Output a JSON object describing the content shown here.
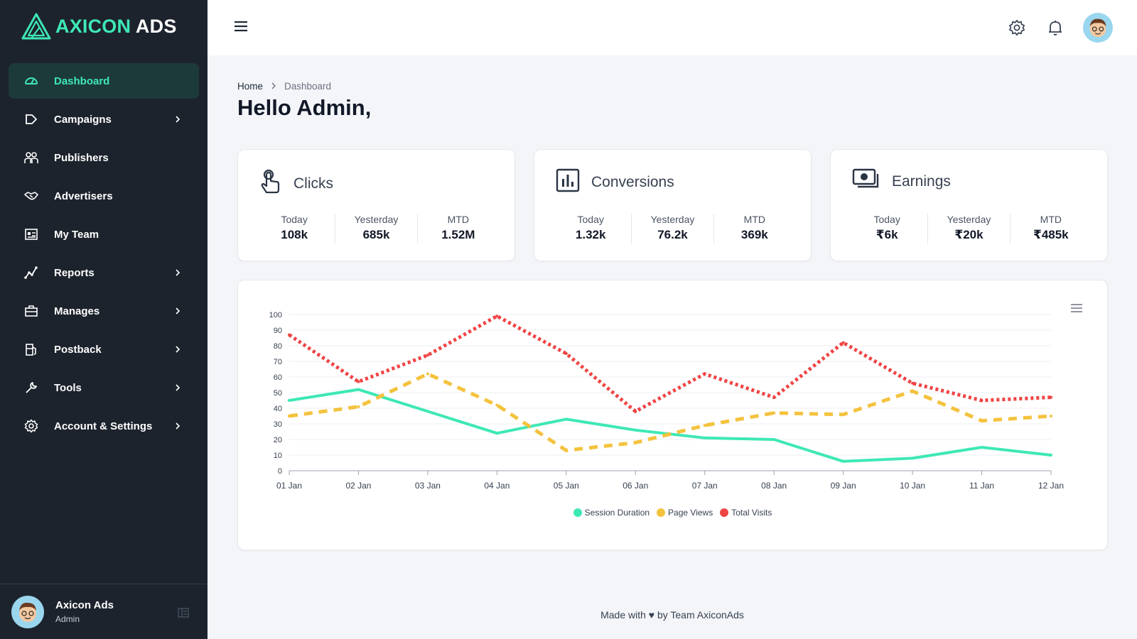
{
  "brand": {
    "part1": "AXICON",
    "part2": "ADS",
    "accent": "#3ee8b5",
    "sidebar_bg": "#1d232d"
  },
  "sidebar": {
    "items": [
      {
        "label": "Dashboard",
        "icon": "gauge-icon",
        "active": true,
        "chevron": false
      },
      {
        "label": "Campaigns",
        "icon": "megaphone-icon",
        "chevron": true
      },
      {
        "label": "Publishers",
        "icon": "users-icon",
        "chevron": false
      },
      {
        "label": "Advertisers",
        "icon": "handshake-icon",
        "chevron": false
      },
      {
        "label": "My Team",
        "icon": "id-card-icon",
        "chevron": false
      },
      {
        "label": "Reports",
        "icon": "chart-line-icon",
        "chevron": true
      },
      {
        "label": "Manages",
        "icon": "briefcase-icon",
        "chevron": true
      },
      {
        "label": "Postback",
        "icon": "fuel-icon",
        "chevron": true
      },
      {
        "label": "Tools",
        "icon": "wrench-icon",
        "chevron": true
      },
      {
        "label": "Account & Settings",
        "icon": "gear-icon",
        "chevron": true
      }
    ],
    "user": {
      "name": "Axicon Ads",
      "role": "Admin"
    }
  },
  "topbar": {
    "icons": [
      "settings-icon",
      "bell-icon",
      "avatar"
    ]
  },
  "breadcrumb": {
    "home": "Home",
    "current": "Dashboard"
  },
  "page_title": "Hello Admin,",
  "stats": [
    {
      "title": "Clicks",
      "icon": "touch-icon",
      "cols": [
        {
          "label": "Today",
          "value": "108k"
        },
        {
          "label": "Yesterday",
          "value": "685k"
        },
        {
          "label": "MTD",
          "value": "1.52M"
        }
      ]
    },
    {
      "title": "Conversions",
      "icon": "bar-chart-icon",
      "cols": [
        {
          "label": "Today",
          "value": "1.32k"
        },
        {
          "label": "Yesterday",
          "value": "76.2k"
        },
        {
          "label": "MTD",
          "value": "369k"
        }
      ]
    },
    {
      "title": "Earnings",
      "icon": "cash-icon",
      "cols": [
        {
          "label": "Today",
          "value": "₹6k"
        },
        {
          "label": "Yesterday",
          "value": "₹20k"
        },
        {
          "label": "MTD",
          "value": "₹485k"
        }
      ]
    }
  ],
  "chart_data": {
    "type": "line",
    "title": "",
    "xlabel": "",
    "ylabel": "",
    "categories": [
      "01 Jan",
      "02 Jan",
      "03 Jan",
      "04 Jan",
      "05 Jan",
      "06 Jan",
      "07 Jan",
      "08 Jan",
      "09 Jan",
      "10 Jan",
      "11 Jan",
      "12 Jan"
    ],
    "ylim": [
      0,
      100
    ],
    "yticks": [
      0,
      10,
      20,
      30,
      40,
      50,
      60,
      70,
      80,
      90,
      100
    ],
    "grid": true,
    "legend_position": "bottom",
    "series": [
      {
        "name": "Session Duration",
        "color": "#3ee8b5",
        "dash": "solid",
        "values": [
          45,
          52,
          38,
          24,
          33,
          26,
          21,
          20,
          6,
          8,
          15,
          10
        ]
      },
      {
        "name": "Page Views",
        "color": "#f4c23d",
        "dash": "dashed",
        "values": [
          35,
          41,
          62,
          42,
          13,
          18,
          29,
          37,
          36,
          51,
          32,
          35
        ]
      },
      {
        "name": "Total Visits",
        "color": "#ef4444",
        "dash": "dotted",
        "values": [
          87,
          57,
          74,
          99,
          75,
          38,
          62,
          47,
          82,
          56,
          45,
          47
        ]
      }
    ]
  },
  "footer": "Made with ♥ by Team AxiconAds"
}
